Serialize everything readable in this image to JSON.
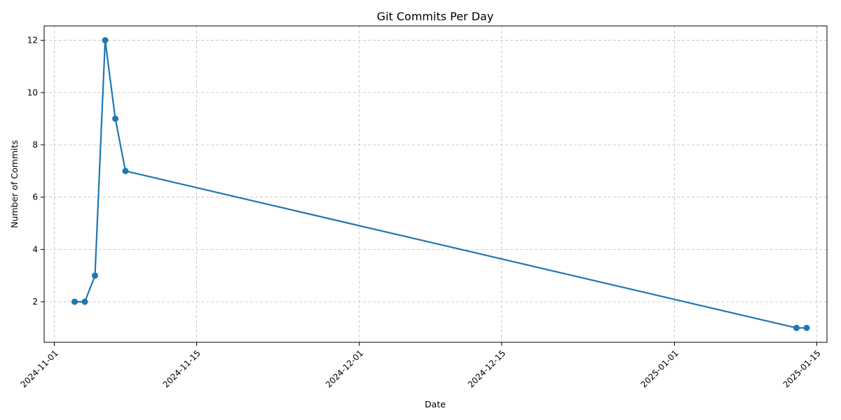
{
  "chart_data": {
    "type": "line",
    "title": "Git Commits Per Day",
    "xlabel": "Date",
    "ylabel": "Number of Commits",
    "x_type": "date",
    "xlim": [
      "2024-10-31",
      "2025-01-16"
    ],
    "ylim": [
      0.45,
      12.55
    ],
    "x_ticks": [
      "2024-11-01",
      "2024-11-15",
      "2024-12-01",
      "2024-12-15",
      "2025-01-01",
      "2025-01-15"
    ],
    "y_ticks": [
      2,
      4,
      6,
      8,
      10,
      12
    ],
    "grid": true,
    "series": [
      {
        "color": "#1f77b4",
        "marker": "circle",
        "points": [
          {
            "x": "2024-11-03",
            "y": 2
          },
          {
            "x": "2024-11-04",
            "y": 2
          },
          {
            "x": "2024-11-05",
            "y": 3
          },
          {
            "x": "2024-11-06",
            "y": 12
          },
          {
            "x": "2024-11-07",
            "y": 9
          },
          {
            "x": "2024-11-08",
            "y": 7
          },
          {
            "x": "2025-01-13",
            "y": 1
          },
          {
            "x": "2025-01-14",
            "y": 1
          }
        ]
      }
    ]
  }
}
